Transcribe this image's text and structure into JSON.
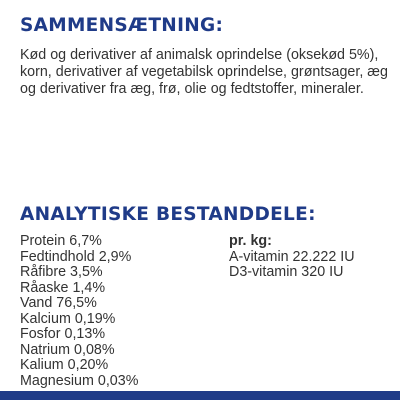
{
  "composition": {
    "heading": "SAMMENSÆTNING:",
    "text": "Kød og derivativer af animalsk oprindelse (oksekød 5%), korn, derivativer af vegetabilsk oprindelse, grøntsager, æg og derivativer fra æg, frø, olie og fedtstoffer, mineraler."
  },
  "analytical": {
    "heading": "ANALYTISKE BESTANDDELE:",
    "items": [
      "Protein 6,7%",
      "Fedtindhold 2,9%",
      "Råfibre 3,5%",
      "Råaske 1,4%",
      "Vand 76,5%",
      "Kalcium 0,19%",
      "Fosfor 0,13%",
      "Natrium 0,08%",
      "Kalium 0,20%",
      "Magnesium 0,03%"
    ],
    "vitamins": {
      "label": "pr. kg:",
      "items": [
        "A-vitamin 22.222 IU",
        "D3-vitamin 320 IU"
      ]
    }
  },
  "colors": {
    "heading": "#1f3b88",
    "text": "#333333",
    "bottom_bar": "#1f3b88"
  }
}
